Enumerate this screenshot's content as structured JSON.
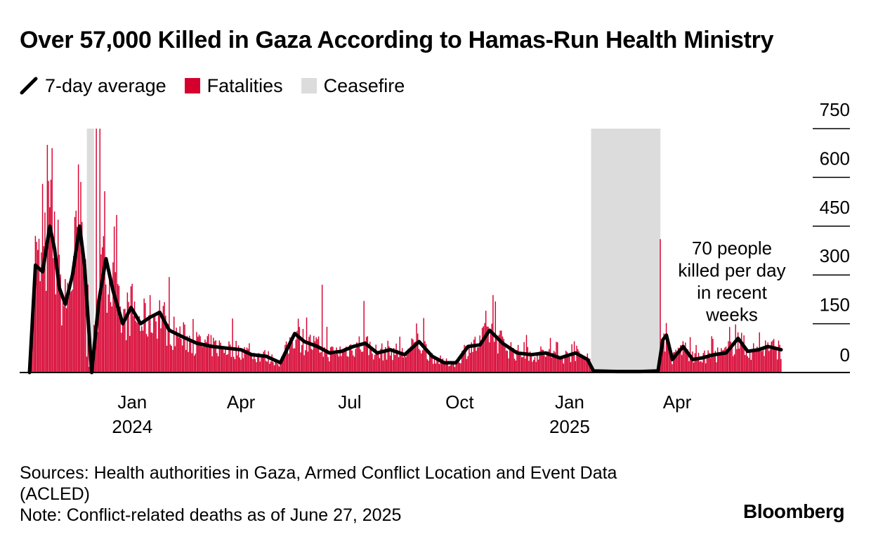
{
  "title": "Over 57,000 Killed in Gaza According to Hamas-Run Health Ministry",
  "legend": {
    "line_label": "7-day average",
    "bar_label": "Fatalities",
    "ceasefire_label": "Ceasefire"
  },
  "colors": {
    "bars": "#d6002f",
    "line": "#000000",
    "ceasefire": "#dcdcdc",
    "gridline": "#000000"
  },
  "annotation": [
    "70 people",
    "killed per day",
    "in recent",
    "weeks"
  ],
  "footer": {
    "sources": "Sources: Health authorities in Gaza, Armed Conflict Location and Event Data (ACLED)",
    "note": "Note: Conflict-related deaths as of June 27, 2025"
  },
  "brand": "Bloomberg",
  "chart_data": {
    "type": "bar",
    "date_range": [
      "2023-10-07",
      "2025-06-27"
    ],
    "ylim": [
      0,
      750
    ],
    "yticks": [
      0,
      150,
      300,
      450,
      600,
      750
    ],
    "xticks": [
      {
        "date": "2024-01-01",
        "label": "Jan",
        "year": "2024"
      },
      {
        "date": "2024-04-01",
        "label": "Apr",
        "year": ""
      },
      {
        "date": "2024-07-01",
        "label": "Jul",
        "year": ""
      },
      {
        "date": "2024-10-01",
        "label": "Oct",
        "year": ""
      },
      {
        "date": "2025-01-01",
        "label": "Jan",
        "year": "2025"
      },
      {
        "date": "2025-04-01",
        "label": "Apr",
        "year": ""
      }
    ],
    "ceasefire_periods": [
      {
        "start": "2023-11-24",
        "end": "2023-11-30"
      },
      {
        "start": "2025-01-19",
        "end": "2025-03-18"
      }
    ],
    "seven_day_average": [
      {
        "date": "2023-10-07",
        "value": 0
      },
      {
        "date": "2023-10-12",
        "value": 330
      },
      {
        "date": "2023-10-18",
        "value": 310
      },
      {
        "date": "2023-10-24",
        "value": 450
      },
      {
        "date": "2023-10-28",
        "value": 380
      },
      {
        "date": "2023-11-01",
        "value": 260
      },
      {
        "date": "2023-11-06",
        "value": 210
      },
      {
        "date": "2023-11-12",
        "value": 300
      },
      {
        "date": "2023-11-18",
        "value": 450
      },
      {
        "date": "2023-11-22",
        "value": 330
      },
      {
        "date": "2023-11-28",
        "value": 0
      },
      {
        "date": "2023-12-04",
        "value": 220
      },
      {
        "date": "2023-12-10",
        "value": 350
      },
      {
        "date": "2023-12-16",
        "value": 250
      },
      {
        "date": "2023-12-24",
        "value": 150
      },
      {
        "date": "2023-12-31",
        "value": 200
      },
      {
        "date": "2024-01-08",
        "value": 150
      },
      {
        "date": "2024-01-16",
        "value": 170
      },
      {
        "date": "2024-01-24",
        "value": 185
      },
      {
        "date": "2024-02-01",
        "value": 130
      },
      {
        "date": "2024-02-12",
        "value": 110
      },
      {
        "date": "2024-02-24",
        "value": 90
      },
      {
        "date": "2024-03-08",
        "value": 80
      },
      {
        "date": "2024-03-20",
        "value": 75
      },
      {
        "date": "2024-04-01",
        "value": 70
      },
      {
        "date": "2024-04-10",
        "value": 55
      },
      {
        "date": "2024-04-22",
        "value": 50
      },
      {
        "date": "2024-05-04",
        "value": 30
      },
      {
        "date": "2024-05-16",
        "value": 120
      },
      {
        "date": "2024-05-24",
        "value": 95
      },
      {
        "date": "2024-06-04",
        "value": 80
      },
      {
        "date": "2024-06-14",
        "value": 60
      },
      {
        "date": "2024-06-24",
        "value": 65
      },
      {
        "date": "2024-07-04",
        "value": 80
      },
      {
        "date": "2024-07-14",
        "value": 90
      },
      {
        "date": "2024-07-24",
        "value": 60
      },
      {
        "date": "2024-08-04",
        "value": 70
      },
      {
        "date": "2024-08-16",
        "value": 55
      },
      {
        "date": "2024-08-28",
        "value": 95
      },
      {
        "date": "2024-09-08",
        "value": 50
      },
      {
        "date": "2024-09-18",
        "value": 30
      },
      {
        "date": "2024-09-28",
        "value": 30
      },
      {
        "date": "2024-10-08",
        "value": 80
      },
      {
        "date": "2024-10-18",
        "value": 85
      },
      {
        "date": "2024-10-26",
        "value": 130
      },
      {
        "date": "2024-11-06",
        "value": 90
      },
      {
        "date": "2024-11-18",
        "value": 60
      },
      {
        "date": "2024-11-30",
        "value": 55
      },
      {
        "date": "2024-12-12",
        "value": 60
      },
      {
        "date": "2024-12-24",
        "value": 45
      },
      {
        "date": "2025-01-06",
        "value": 60
      },
      {
        "date": "2025-01-16",
        "value": 40
      },
      {
        "date": "2025-01-21",
        "value": 5
      },
      {
        "date": "2025-02-10",
        "value": 3
      },
      {
        "date": "2025-03-01",
        "value": 3
      },
      {
        "date": "2025-03-16",
        "value": 5
      },
      {
        "date": "2025-03-20",
        "value": 100
      },
      {
        "date": "2025-03-23",
        "value": 115
      },
      {
        "date": "2025-03-28",
        "value": 40
      },
      {
        "date": "2025-04-06",
        "value": 80
      },
      {
        "date": "2025-04-14",
        "value": 40
      },
      {
        "date": "2025-04-22",
        "value": 45
      },
      {
        "date": "2025-05-02",
        "value": 55
      },
      {
        "date": "2025-05-12",
        "value": 60
      },
      {
        "date": "2025-05-22",
        "value": 105
      },
      {
        "date": "2025-05-30",
        "value": 65
      },
      {
        "date": "2025-06-08",
        "value": 70
      },
      {
        "date": "2025-06-16",
        "value": 80
      },
      {
        "date": "2025-06-27",
        "value": 70
      }
    ],
    "fatalities_peaks": [
      {
        "date": "2023-10-12",
        "value": 420
      },
      {
        "date": "2023-10-18",
        "value": 580
      },
      {
        "date": "2023-10-22",
        "value": 700
      },
      {
        "date": "2023-10-26",
        "value": 690
      },
      {
        "date": "2023-10-31",
        "value": 470
      },
      {
        "date": "2023-11-17",
        "value": 640
      },
      {
        "date": "2023-12-02",
        "value": 750
      },
      {
        "date": "2023-12-05",
        "value": 750
      },
      {
        "date": "2024-06-08",
        "value": 270
      },
      {
        "date": "2024-07-13",
        "value": 220
      },
      {
        "date": "2024-10-23",
        "value": 190
      },
      {
        "date": "2025-03-18",
        "value": 410
      },
      {
        "date": "2025-05-15",
        "value": 140
      }
    ]
  }
}
